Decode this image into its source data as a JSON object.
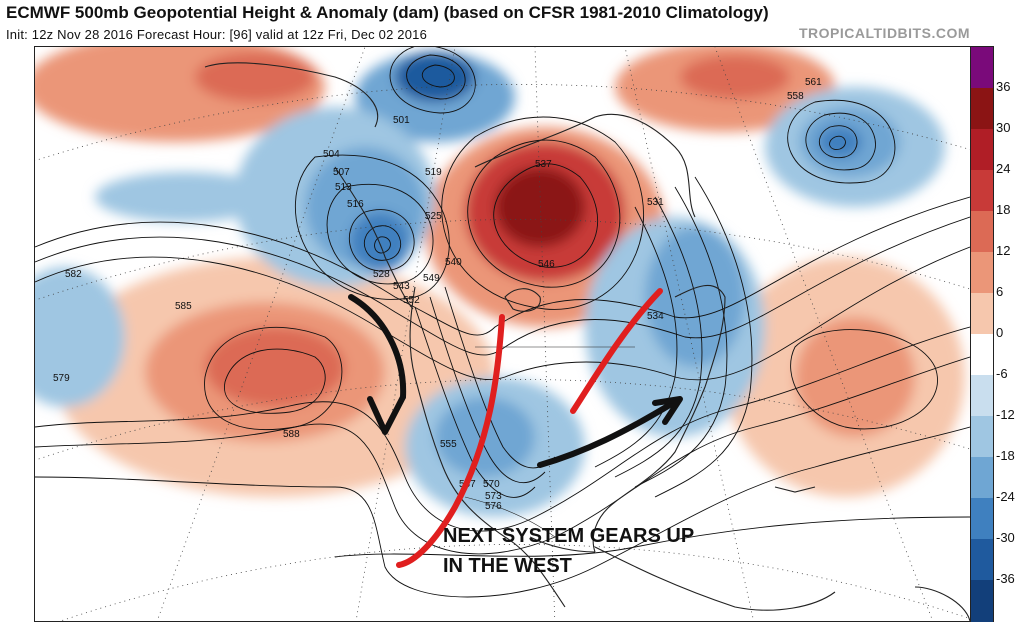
{
  "header": {
    "title": "ECMWF 500mb Geopotential Height & Anomaly (dam) (based on CFSR 1981-2010 Climatology)",
    "init_info": "Init: 12z Nov 28 2016   Forecast Hour: [96]   valid at 12z Fri, Dec 02 2016",
    "brand": "TROPICALTIDBITS.COM"
  },
  "colorbar": {
    "ticks": [
      "36",
      "30",
      "24",
      "18",
      "12",
      "6",
      "0",
      "-6",
      "-12",
      "-18",
      "-24",
      "-30",
      "-36"
    ],
    "colors": [
      "#7a0a7a",
      "#8b1414",
      "#b01e26",
      "#c83a38",
      "#dc6a55",
      "#eb9678",
      "#f6c7ad",
      "#ffffff",
      "#c9deee",
      "#9fc6e2",
      "#6fa6d3",
      "#3f80bf",
      "#1f5a9e",
      "#123f7a"
    ]
  },
  "map": {
    "contour_labels": [
      "501",
      "504",
      "507",
      "513",
      "516",
      "519",
      "525",
      "528",
      "531",
      "534",
      "537",
      "540",
      "543",
      "546",
      "549",
      "552",
      "555",
      "558",
      "561",
      "567",
      "570",
      "573",
      "576",
      "579",
      "582",
      "585",
      "588"
    ],
    "land_color": "#ffffff",
    "coast_color": "#222222"
  },
  "annotation": {
    "line1": "NEXT SYSTEM GEARS UP",
    "line2": "IN THE WEST"
  }
}
